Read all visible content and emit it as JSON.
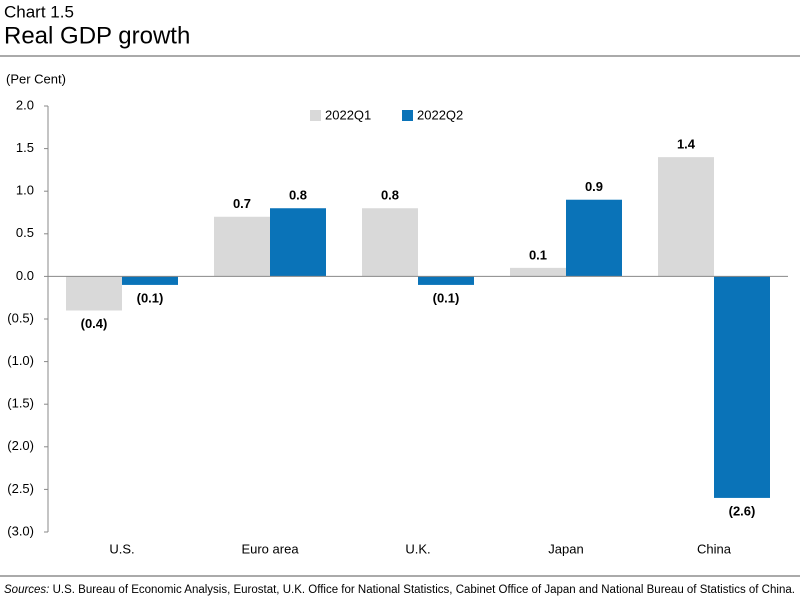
{
  "chart_data": {
    "type": "bar",
    "chart_label": "Chart 1.5",
    "title": "Real GDP growth",
    "y_axis_label": "(Per Cent)",
    "categories": [
      "U.S.",
      "Euro area",
      "U.K.",
      "Japan",
      "China"
    ],
    "series": [
      {
        "name": "2022Q1",
        "color": "#d9d9d9",
        "values": [
          -0.4,
          0.7,
          0.8,
          0.1,
          1.4
        ],
        "value_labels": [
          "(0.4)",
          "0.7",
          "0.8",
          "0.1",
          "1.4"
        ]
      },
      {
        "name": "2022Q2",
        "color": "#0a73b8",
        "values": [
          -0.1,
          0.8,
          -0.1,
          0.9,
          -2.6
        ],
        "value_labels": [
          "(0.1)",
          "0.8",
          "(0.1)",
          "0.9",
          "(2.6)"
        ]
      }
    ],
    "ylim": [
      -3.0,
      2.0
    ],
    "yticks": [
      {
        "value": -3.0,
        "label": "(3.0)"
      },
      {
        "value": -2.5,
        "label": "(2.5)"
      },
      {
        "value": -2.0,
        "label": "(2.0)"
      },
      {
        "value": -1.5,
        "label": "(1.5)"
      },
      {
        "value": -1.0,
        "label": "(1.0)"
      },
      {
        "value": -0.5,
        "label": "(0.5)"
      },
      {
        "value": 0,
        "label": "0.0"
      },
      0.5,
      {
        "value": 1.0,
        "label": "1.0"
      },
      1.5,
      {
        "value": 2.0,
        "label": "2.0"
      }
    ],
    "grid": false,
    "legend_position": "top",
    "sources_label": "Sources:",
    "sources_text": "U.S. Bureau of Economic Analysis, Eurostat, U.K. Office for National Statistics, Cabinet Office of Japan and National Bureau of Statistics of China."
  }
}
